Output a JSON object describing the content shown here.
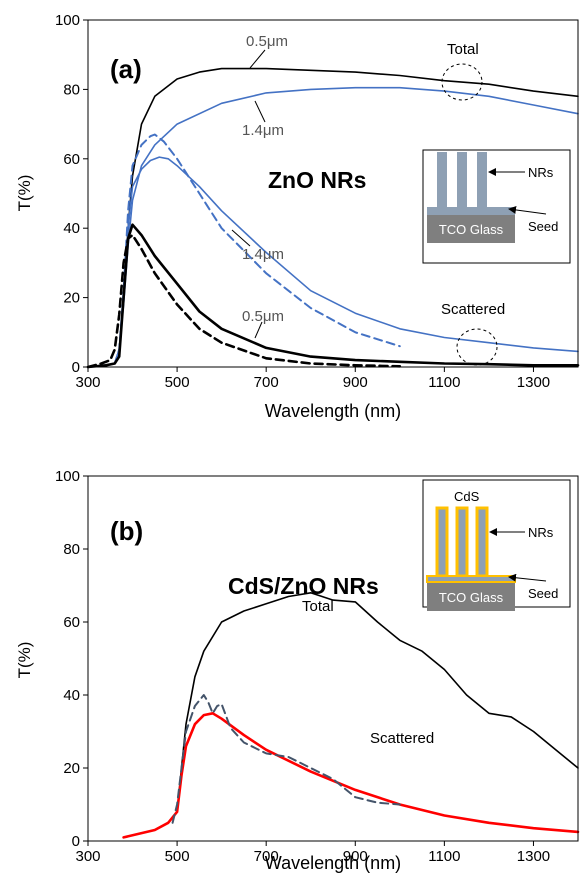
{
  "chart_data": [
    {
      "type": "line",
      "panel_label": "(a)",
      "title": "ZnO NRs",
      "xlabel": "Wavelength (nm)",
      "ylabel": "T(%)",
      "xlim": [
        300,
        1400
      ],
      "ylim": [
        0,
        100
      ],
      "xticks": [
        300,
        500,
        700,
        900,
        1100,
        1300
      ],
      "yticks": [
        0,
        20,
        40,
        60,
        80,
        100
      ],
      "grid": false,
      "legend": "none",
      "annotations": {
        "total": "Total",
        "scattered": "Scattered",
        "label_05_total": "0.5μm",
        "label_14_total": "1.4μm",
        "label_14_scat": "1.4μm",
        "label_05_scat": "0.5μm"
      },
      "inset": {
        "nrs": "NRs",
        "seed": "Seed",
        "substrate": "TCO Glass"
      },
      "series": [
        {
          "thickness": "0.5μm",
          "kind": "Total",
          "color": "#000000",
          "dashed": false,
          "x": [
            300,
            340,
            360,
            370,
            380,
            390,
            400,
            420,
            450,
            500,
            550,
            600,
            700,
            800,
            900,
            1000,
            1100,
            1200,
            1300,
            1400
          ],
          "y": [
            0,
            0.5,
            1,
            5,
            20,
            40,
            55,
            70,
            78,
            83,
            85,
            86,
            86,
            85.5,
            85,
            84,
            82.5,
            81.5,
            79.5,
            78
          ]
        },
        {
          "thickness": "1.4μm",
          "kind": "Total",
          "color": "#4472c4",
          "dashed": false,
          "x": [
            300,
            340,
            360,
            370,
            380,
            390,
            400,
            420,
            450,
            500,
            600,
            700,
            800,
            900,
            1000,
            1100,
            1200,
            1300,
            1400
          ],
          "y": [
            0,
            0.5,
            1,
            5,
            18,
            35,
            48,
            58,
            64,
            70,
            76,
            79,
            80,
            80.5,
            80.5,
            79.5,
            78,
            75.5,
            73
          ]
        },
        {
          "thickness": "1.4μm",
          "kind": "Scattered",
          "color": "#4472c4",
          "dashed": false,
          "x": [
            300,
            340,
            360,
            370,
            380,
            390,
            400,
            420,
            440,
            460,
            480,
            500,
            550,
            600,
            700,
            800,
            900,
            1000,
            1100,
            1200,
            1300,
            1400
          ],
          "y": [
            0,
            0.5,
            1,
            5,
            20,
            40,
            52,
            57,
            59.5,
            60.5,
            60,
            58,
            52,
            45,
            33,
            22,
            15.5,
            11,
            8.5,
            7,
            5.5,
            4.5
          ]
        },
        {
          "thickness": "1.4μm",
          "kind": "Scattered (dashed)",
          "color": "#4472c4",
          "dashed": true,
          "x": [
            300,
            340,
            360,
            370,
            380,
            390,
            400,
            420,
            440,
            450,
            470,
            500,
            550,
            600,
            700,
            800,
            900,
            1000
          ],
          "y": [
            0,
            0.5,
            1,
            5,
            22,
            45,
            58,
            64,
            66.5,
            67,
            65,
            60,
            50,
            40,
            27,
            17,
            10,
            6
          ]
        },
        {
          "thickness": "0.5μm",
          "kind": "Scattered",
          "color": "#000000",
          "dashed": false,
          "x": [
            300,
            340,
            360,
            370,
            380,
            390,
            400,
            420,
            450,
            500,
            550,
            600,
            700,
            800,
            900,
            1000,
            1100,
            1200,
            1300,
            1400
          ],
          "y": [
            0,
            0.5,
            1,
            3,
            20,
            37,
            41,
            38,
            32,
            24,
            16,
            11,
            5.5,
            3,
            2,
            1.5,
            1,
            0.8,
            0.5,
            0.5
          ]
        },
        {
          "thickness": "0.5μm",
          "kind": "Scattered (dashed)",
          "color": "#000000",
          "dashed": true,
          "x": [
            300,
            330,
            350,
            360,
            370,
            380,
            390,
            400,
            420,
            450,
            500,
            550,
            600,
            700,
            800,
            900,
            1000
          ],
          "y": [
            0,
            1,
            2,
            5,
            15,
            30,
            37,
            38,
            34,
            27,
            18,
            11,
            7,
            2.5,
            1,
            0.5,
            0.2
          ]
        }
      ]
    },
    {
      "type": "line",
      "panel_label": "(b)",
      "title": "CdS/ZnO NRs",
      "xlabel": "Wavelength (nm)",
      "ylabel": "T(%)",
      "xlim": [
        300,
        1400
      ],
      "ylim": [
        0,
        100
      ],
      "xticks": [
        300,
        500,
        700,
        900,
        1100,
        1300
      ],
      "yticks": [
        0,
        20,
        40,
        60,
        80,
        100
      ],
      "grid": false,
      "legend": "none",
      "annotations": {
        "total": "Total",
        "scattered": "Scattered"
      },
      "inset": {
        "shell": "CdS",
        "nrs": "NRs",
        "seed": "Seed",
        "substrate": "TCO Glass"
      },
      "series": [
        {
          "kind": "Total",
          "color": "#000000",
          "dashed": false,
          "x": [
            500,
            510,
            520,
            540,
            560,
            600,
            650,
            700,
            750,
            800,
            850,
            900,
            950,
            1000,
            1050,
            1100,
            1150,
            1200,
            1250,
            1300,
            1350,
            1400
          ],
          "y": [
            8,
            20,
            32,
            45,
            52,
            60,
            63,
            65,
            67,
            68,
            66,
            65.5,
            60,
            55,
            52,
            47,
            40,
            35,
            34,
            30,
            25,
            20
          ]
        },
        {
          "kind": "Scattered",
          "color": "#ff0000",
          "dashed": false,
          "x": [
            380,
            450,
            480,
            500,
            510,
            520,
            540,
            560,
            580,
            600,
            650,
            700,
            800,
            900,
            1000,
            1100,
            1200,
            1300,
            1400
          ],
          "y": [
            1,
            3,
            5,
            8,
            18,
            26,
            32,
            34.5,
            35,
            33.5,
            29,
            25,
            19,
            14,
            10,
            7,
            5,
            3.5,
            2.5
          ]
        },
        {
          "kind": "Scattered (dashed)",
          "color": "#44546a",
          "dashed": true,
          "x": [
            490,
            500,
            510,
            520,
            540,
            560,
            570,
            580,
            590,
            600,
            620,
            650,
            700,
            750,
            800,
            850,
            900,
            950,
            1000
          ],
          "y": [
            5,
            10,
            20,
            30,
            37,
            40,
            38,
            35,
            37,
            37.5,
            31,
            27,
            24,
            23,
            20,
            17,
            12,
            10.5,
            10
          ]
        }
      ]
    }
  ]
}
